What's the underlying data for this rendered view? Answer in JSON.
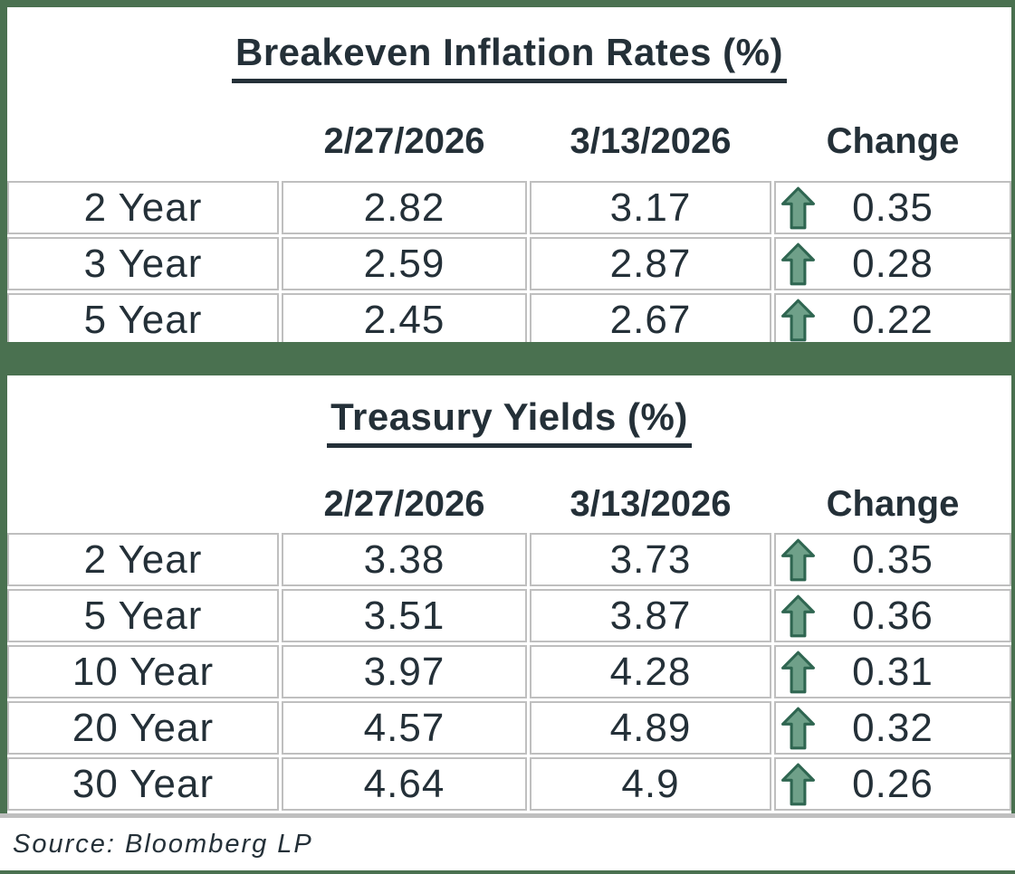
{
  "chart_data": [
    {
      "type": "table",
      "title": "Breakeven Inflation Rates (%)",
      "col_headers": [
        "",
        "2/27/2026",
        "3/13/2026",
        "Change"
      ],
      "rows": [
        {
          "label": "2 Year",
          "prev": "2.82",
          "curr": "3.17",
          "change": "0.35",
          "direction": "up"
        },
        {
          "label": "3 Year",
          "prev": "2.59",
          "curr": "2.87",
          "change": "0.28",
          "direction": "up"
        },
        {
          "label": "5 Year",
          "prev": "2.45",
          "curr": "2.67",
          "change": "0.22",
          "direction": "up"
        }
      ]
    },
    {
      "type": "table",
      "title": "Treasury Yields (%)",
      "col_headers": [
        "",
        "2/27/2026",
        "3/13/2026",
        "Change"
      ],
      "rows": [
        {
          "label": "2 Year",
          "prev": "3.38",
          "curr": "3.73",
          "change": "0.35",
          "direction": "up"
        },
        {
          "label": "5 Year",
          "prev": "3.51",
          "curr": "3.87",
          "change": "0.36",
          "direction": "up"
        },
        {
          "label": "10 Year",
          "prev": "3.97",
          "curr": "4.28",
          "change": "0.31",
          "direction": "up"
        },
        {
          "label": "20 Year",
          "prev": "4.57",
          "curr": "4.89",
          "change": "0.32",
          "direction": "up"
        },
        {
          "label": "30 Year",
          "prev": "4.64",
          "curr": "4.9",
          "change": "0.26",
          "direction": "up"
        }
      ]
    }
  ],
  "source_note": "Source: Bloomberg LP",
  "icons": {
    "change_up": "up-arrow"
  },
  "colors": {
    "frame_green": "#4A7150",
    "grid_gray": "#BFBFBF",
    "text": "#243038",
    "arrow_fill": "#6FA089",
    "arrow_stroke": "#2F6651"
  }
}
